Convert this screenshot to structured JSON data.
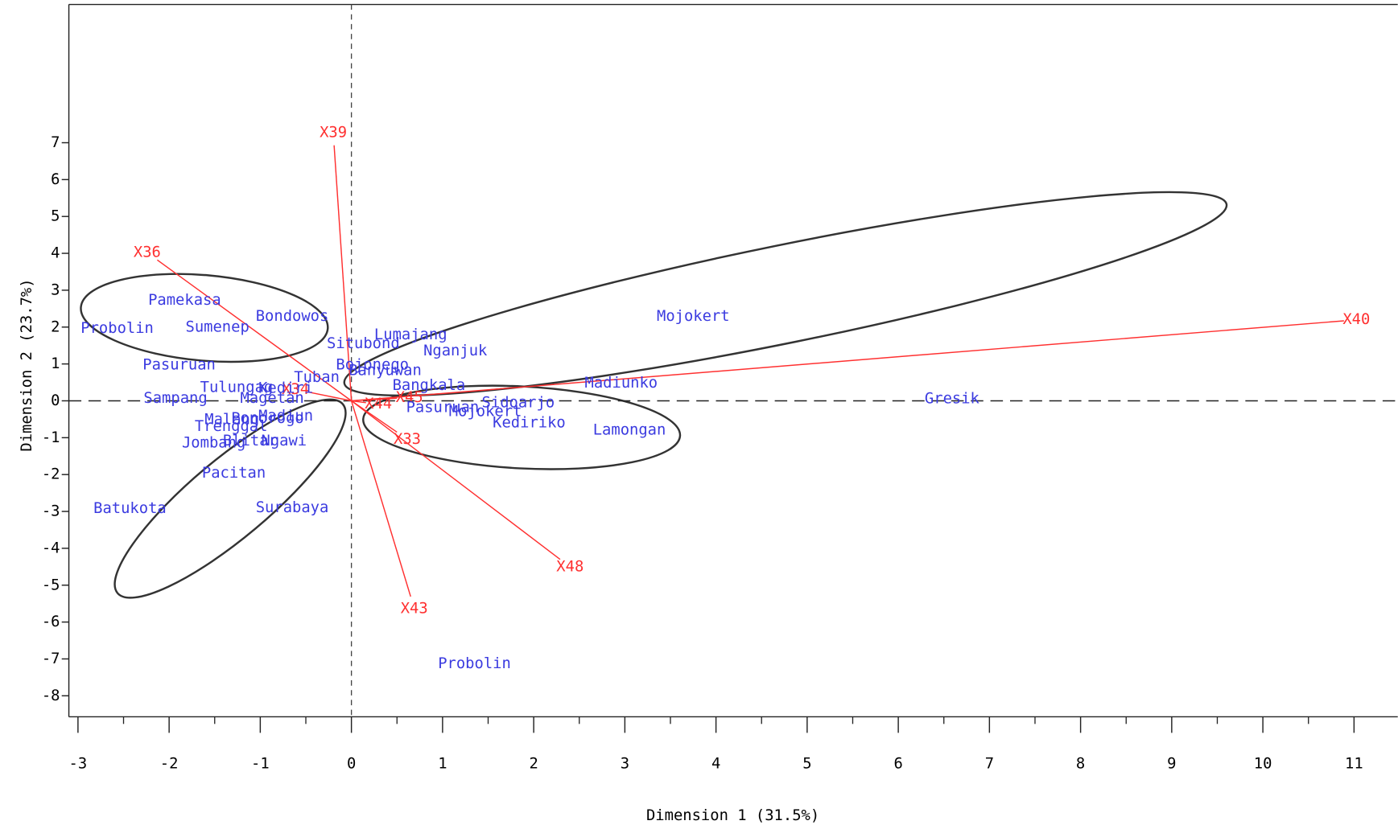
{
  "chart_data": {
    "type": "biplot",
    "x_label": "Dimension 1 (31.5%)",
    "y_label": "Dimension 2 (23.7%)",
    "xlim": [
      -3.1,
      11.48
    ],
    "ylim": [
      -8.57,
      10.75
    ],
    "xticks": [
      -3,
      -2,
      -1,
      0,
      1,
      2,
      3,
      4,
      5,
      6,
      7,
      8,
      9,
      10,
      11
    ],
    "yticks": [
      -8,
      -7,
      -6,
      -5,
      -4,
      -3,
      -2,
      -1,
      0,
      1,
      2,
      3,
      4,
      5,
      6,
      7
    ],
    "points": {
      "color": "#3b3be0",
      "labels": [
        "Probolin",
        "Pamekasa",
        "Sumenep",
        "Bondowos",
        "Pasuruan",
        "Sampang",
        "Tulungag",
        "Lumajang",
        "Situbond",
        "Nganjuk",
        "Mojokert",
        "Bojonego",
        "Banyuwan",
        "Tuban",
        "Bangkala",
        "Madiunko",
        "Gresik",
        "Pasuruan",
        "Mojokert",
        "Sidoarjo",
        "Kediriko",
        "Lamongan",
        "Magetan",
        "Kediri",
        "Madiun",
        "Malang",
        "Trenggal",
        "Ponorogo",
        "Jombang",
        "Blitar",
        "Ngawi",
        "Pacitan",
        "Surabaya",
        "Batukota",
        "Probolin"
      ],
      "x": [
        -2.57,
        -1.83,
        -1.47,
        -0.65,
        -1.89,
        -1.93,
        -1.26,
        0.65,
        0.13,
        1.14,
        3.75,
        0.23,
        0.37,
        -0.38,
        0.85,
        2.96,
        6.59,
        1.0,
        1.47,
        1.83,
        1.95,
        3.05,
        -0.87,
        -0.72,
        -0.72,
        -1.31,
        -1.32,
        -0.92,
        -1.51,
        -1.11,
        -0.74,
        -1.29,
        -0.65,
        -2.43,
        1.35
      ],
      "y": [
        1.96,
        2.73,
        2.0,
        2.29,
        0.97,
        0.07,
        0.36,
        1.79,
        1.55,
        1.35,
        2.29,
        0.97,
        0.82,
        0.63,
        0.41,
        0.48,
        0.05,
        -0.19,
        -0.29,
        -0.05,
        -0.6,
        -0.8,
        0.07,
        0.34,
        -0.41,
        -0.51,
        -0.7,
        -0.48,
        -1.14,
        -1.09,
        -1.09,
        -1.96,
        -2.9,
        -2.92,
        -7.13
      ]
    },
    "vectors": {
      "color": "#ff3030",
      "labels": [
        "X39",
        "X36",
        "X40",
        "X48",
        "X43",
        "X33",
        "X34",
        "X44",
        "X45"
      ],
      "x": [
        -0.19,
        -2.13,
        10.89,
        2.29,
        0.65,
        0.5,
        -0.48,
        0.16,
        0.5
      ],
      "y": [
        6.93,
        3.82,
        2.17,
        -4.3,
        -5.31,
        -0.85,
        0.24,
        -0.05,
        0.07
      ]
    }
  }
}
